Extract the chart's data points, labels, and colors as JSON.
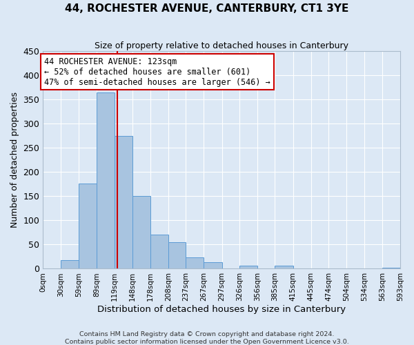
{
  "title": "44, ROCHESTER AVENUE, CANTERBURY, CT1 3YE",
  "subtitle": "Size of property relative to detached houses in Canterbury",
  "xlabel": "Distribution of detached houses by size in Canterbury",
  "ylabel": "Number of detached properties",
  "bar_color": "#a8c4e0",
  "bar_edge_color": "#5b9bd5",
  "background_color": "#dce8f5",
  "grid_color": "white",
  "bins": [
    0,
    30,
    59,
    89,
    119,
    148,
    178,
    208,
    237,
    267,
    297,
    326,
    356,
    385,
    415,
    445,
    474,
    504,
    534,
    563,
    593
  ],
  "bin_labels": [
    "0sqm",
    "30sqm",
    "59sqm",
    "89sqm",
    "119sqm",
    "148sqm",
    "178sqm",
    "208sqm",
    "237sqm",
    "267sqm",
    "297sqm",
    "326sqm",
    "356sqm",
    "385sqm",
    "415sqm",
    "445sqm",
    "474sqm",
    "504sqm",
    "534sqm",
    "563sqm",
    "593sqm"
  ],
  "counts": [
    0,
    18,
    176,
    365,
    275,
    150,
    70,
    55,
    23,
    13,
    0,
    6,
    0,
    7,
    0,
    0,
    0,
    0,
    0,
    2
  ],
  "vline_x": 123,
  "vline_color": "#cc0000",
  "annotation_line1": "44 ROCHESTER AVENUE: 123sqm",
  "annotation_line2": "← 52% of detached houses are smaller (601)",
  "annotation_line3": "47% of semi-detached houses are larger (546) →",
  "annotation_box_color": "white",
  "annotation_box_edge_color": "#cc0000",
  "ylim": [
    0,
    450
  ],
  "yticks": [
    0,
    50,
    100,
    150,
    200,
    250,
    300,
    350,
    400,
    450
  ],
  "footnote1": "Contains HM Land Registry data © Crown copyright and database right 2024.",
  "footnote2": "Contains public sector information licensed under the Open Government Licence v3.0."
}
